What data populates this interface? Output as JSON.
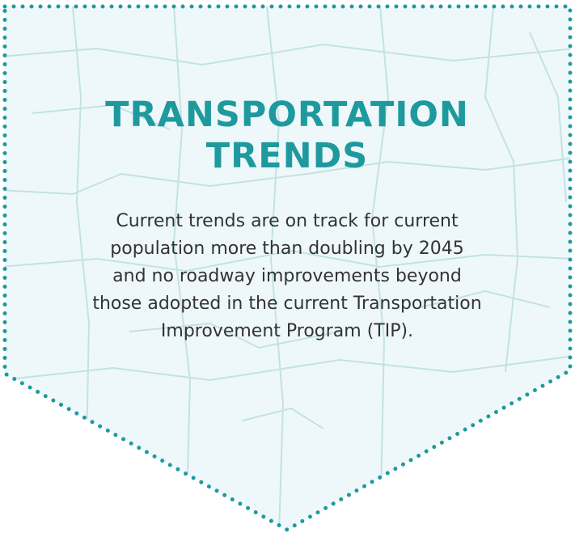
{
  "title_lines": [
    "TRANSPORTATION",
    "TRENDS"
  ],
  "body_lines": [
    "Current trends are on track for current",
    "population more than doubling by 2045",
    "and no roadway improvements beyond",
    "those adopted in the current Transportation",
    "Improvement Program (TIP)."
  ]
}
